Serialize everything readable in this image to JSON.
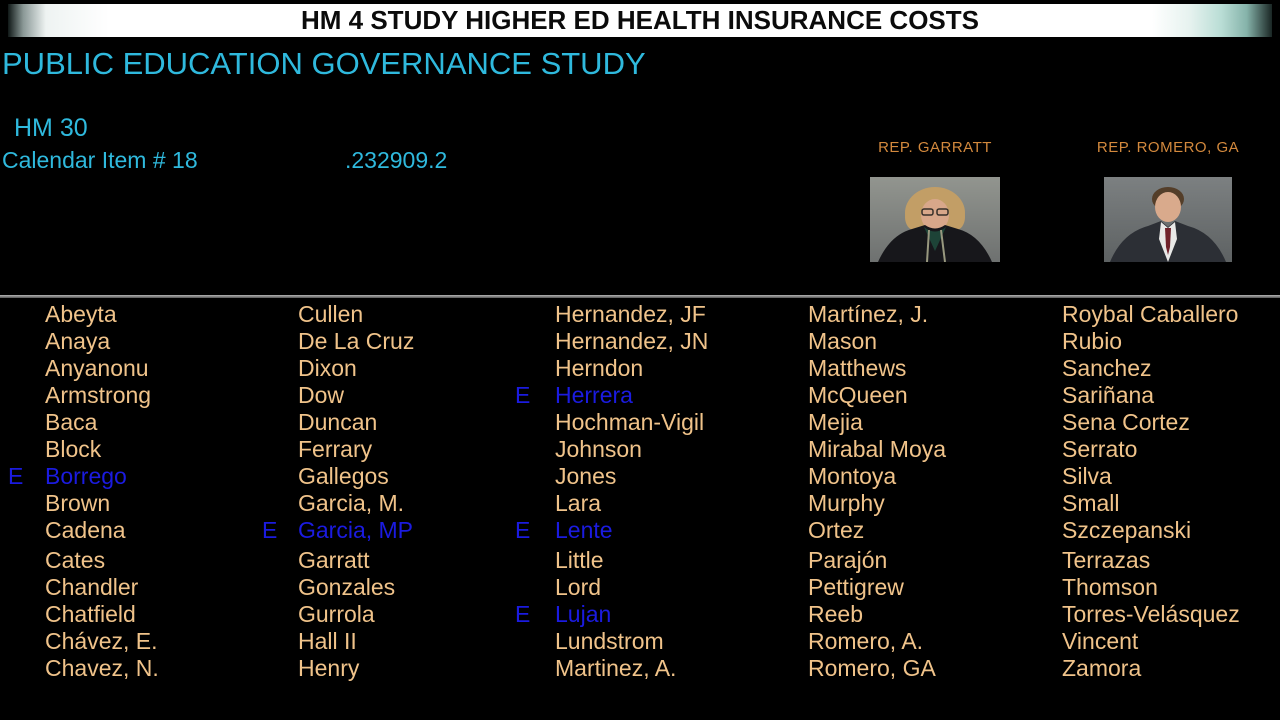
{
  "title_bar": {
    "text": "HM 4 STUDY HIGHER ED HEALTH INSURANCE COSTS"
  },
  "subtitle": "PUBLIC EDUCATION GOVERNANCE STUDY",
  "measure": {
    "number": "HM 30",
    "calendar_item": "Calendar Item # 18",
    "code": ".232909.2"
  },
  "sponsors": [
    {
      "label": "REP. GARRATT",
      "photo": "garratt-portrait"
    },
    {
      "label": "REP. ROMERO, GA",
      "photo": "romero-portrait"
    }
  ],
  "roster": {
    "excused_marker": "E",
    "columns": [
      {
        "entries": [
          {
            "name": "Abeyta"
          },
          {
            "name": "Anaya"
          },
          {
            "name": "Anyanonu"
          },
          {
            "name": "Armstrong"
          },
          {
            "name": "Baca"
          },
          {
            "name": "Block"
          },
          {
            "name": "Borrego",
            "excused": true
          },
          {
            "name": "Brown"
          },
          {
            "name": "Cadena"
          },
          {
            "name": "Cates"
          },
          {
            "name": "Chandler"
          },
          {
            "name": "Chatfield"
          },
          {
            "name": "Chávez, E."
          },
          {
            "name": "Chavez, N."
          }
        ]
      },
      {
        "entries": [
          {
            "name": "Cullen"
          },
          {
            "name": "De La Cruz"
          },
          {
            "name": "Dixon"
          },
          {
            "name": "Dow"
          },
          {
            "name": "Duncan"
          },
          {
            "name": "Ferrary"
          },
          {
            "name": "Gallegos"
          },
          {
            "name": "Garcia, M."
          },
          {
            "name": "Garcia, MP",
            "excused": true
          },
          {
            "name": "Garratt"
          },
          {
            "name": "Gonzales"
          },
          {
            "name": "Gurrola"
          },
          {
            "name": "Hall II"
          },
          {
            "name": "Henry"
          }
        ]
      },
      {
        "entries": [
          {
            "name": "Hernandez, JF"
          },
          {
            "name": "Hernandez, JN"
          },
          {
            "name": "Herndon"
          },
          {
            "name": "Herrera",
            "excused": true
          },
          {
            "name": "Hochman-Vigil"
          },
          {
            "name": "Johnson"
          },
          {
            "name": "Jones"
          },
          {
            "name": "Lara"
          },
          {
            "name": "Lente",
            "excused": true
          },
          {
            "name": "Little"
          },
          {
            "name": "Lord"
          },
          {
            "name": "Lujan",
            "excused": true
          },
          {
            "name": "Lundstrom"
          },
          {
            "name": "Martinez, A."
          }
        ]
      },
      {
        "entries": [
          {
            "name": "Martínez, J."
          },
          {
            "name": "Mason"
          },
          {
            "name": "Matthews"
          },
          {
            "name": "McQueen"
          },
          {
            "name": "Mejia"
          },
          {
            "name": "Mirabal Moya"
          },
          {
            "name": "Montoya"
          },
          {
            "name": "Murphy"
          },
          {
            "name": "Ortez"
          },
          {
            "name": "Parajón"
          },
          {
            "name": "Pettigrew"
          },
          {
            "name": "Reeb"
          },
          {
            "name": "Romero, A."
          },
          {
            "name": "Romero, GA"
          }
        ]
      },
      {
        "entries": [
          {
            "name": "Roybal Caballero"
          },
          {
            "name": "Rubio"
          },
          {
            "name": "Sanchez"
          },
          {
            "name": "Sariñana"
          },
          {
            "name": "Sena Cortez"
          },
          {
            "name": "Serrato"
          },
          {
            "name": "Silva"
          },
          {
            "name": "Small"
          },
          {
            "name": "Szczepanski"
          },
          {
            "name": "Terrazas"
          },
          {
            "name": "Thomson"
          },
          {
            "name": "Torres-Velásquez"
          },
          {
            "name": "Vincent"
          },
          {
            "name": "Zamora"
          }
        ]
      }
    ]
  },
  "colors": {
    "accent_cyan": "#2fb9dd",
    "member_name": "#f0c38a",
    "excused_blue": "#1b1be0",
    "sponsor_label": "#d3893d"
  }
}
